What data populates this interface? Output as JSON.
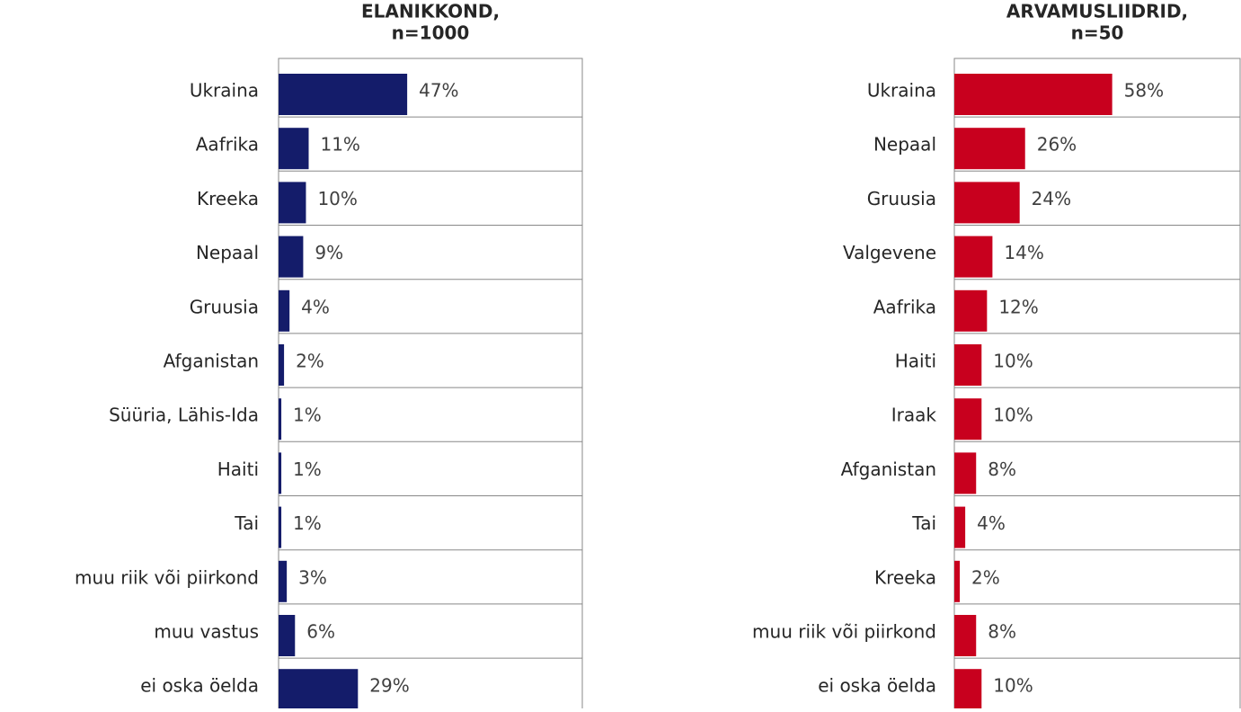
{
  "chart_data": [
    {
      "type": "bar",
      "orientation": "horizontal",
      "title": [
        "ELANIKKOND,",
        "n=1000"
      ],
      "color": "#141c6a",
      "categories": [
        "Ukraina",
        "Aafrika",
        "Kreeka",
        "Nepaal",
        "Gruusia",
        "Afganistan",
        "Süüria, Lähis-Ida",
        "Haiti",
        "Tai",
        "muu riik või piirkond",
        "muu vastus",
        "ei oska öelda"
      ],
      "values": [
        47,
        11,
        10,
        9,
        4,
        2,
        1,
        1,
        1,
        3,
        6,
        29
      ],
      "value_labels": [
        "47%",
        "11%",
        "10%",
        "9%",
        "4%",
        "2%",
        "1%",
        "1%",
        "1%",
        "3%",
        "6%",
        "29%"
      ],
      "xlim": [
        0,
        111
      ]
    },
    {
      "type": "bar",
      "orientation": "horizontal",
      "title": [
        "ARVAMUSLIIDRID,",
        "n=50"
      ],
      "color": "#c8001e",
      "categories": [
        "Ukraina",
        "Nepaal",
        "Gruusia",
        "Valgevene",
        "Aafrika",
        "Haiti",
        "Iraak",
        "Afganistan",
        "Tai",
        "Kreeka",
        "muu riik või piirkond",
        "ei oska öelda"
      ],
      "values": [
        58,
        26,
        24,
        14,
        12,
        10,
        10,
        8,
        4,
        2,
        8,
        10
      ],
      "value_labels": [
        "58%",
        "26%",
        "24%",
        "14%",
        "12%",
        "10%",
        "10%",
        "8%",
        "4%",
        "2%",
        "8%",
        "10%"
      ],
      "xlim": [
        0,
        105
      ]
    }
  ]
}
